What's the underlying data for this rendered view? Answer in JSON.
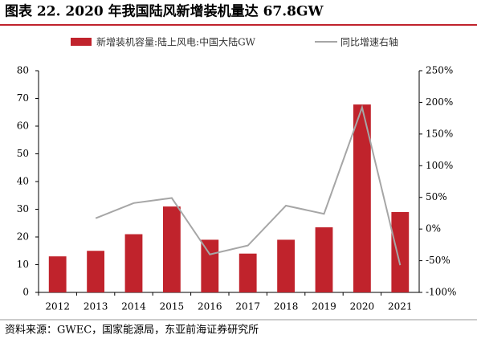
{
  "chart_data": {
    "type": "combo",
    "title": "图表 22. 2020 年我国陆风新增装机量达 67.8GW",
    "source": "资料来源：GWEC，国家能源局，东亚前海证券研究所",
    "categories": [
      "2012",
      "2013",
      "2014",
      "2015",
      "2016",
      "2017",
      "2018",
      "2019",
      "2020",
      "2021"
    ],
    "series": [
      {
        "name": "新增装机容量:陆上风电:中国大陆GW",
        "type": "bar",
        "color": "#c0232c",
        "values": [
          13,
          15,
          21,
          31,
          19,
          14,
          19,
          23.5,
          67.8,
          29
        ]
      },
      {
        "name": "同比增速右轴",
        "type": "line",
        "axis": "y2",
        "color": "#a6a6a6",
        "values": [
          null,
          17,
          41,
          49,
          -40,
          -26,
          37,
          24,
          192,
          -57
        ]
      }
    ],
    "ylim": [
      0,
      80
    ],
    "yticks": [
      0,
      10,
      20,
      30,
      40,
      50,
      60,
      70,
      80
    ],
    "y2lim": [
      -100,
      250
    ],
    "y2ticks": [
      {
        "value": -100,
        "label": "-100%"
      },
      {
        "value": -50,
        "label": "-50%"
      },
      {
        "value": 0,
        "label": "0%"
      },
      {
        "value": 50,
        "label": "50%"
      },
      {
        "value": 100,
        "label": "100%"
      },
      {
        "value": 150,
        "label": "150%"
      },
      {
        "value": 200,
        "label": "200%"
      },
      {
        "value": 250,
        "label": "250%"
      }
    ]
  }
}
